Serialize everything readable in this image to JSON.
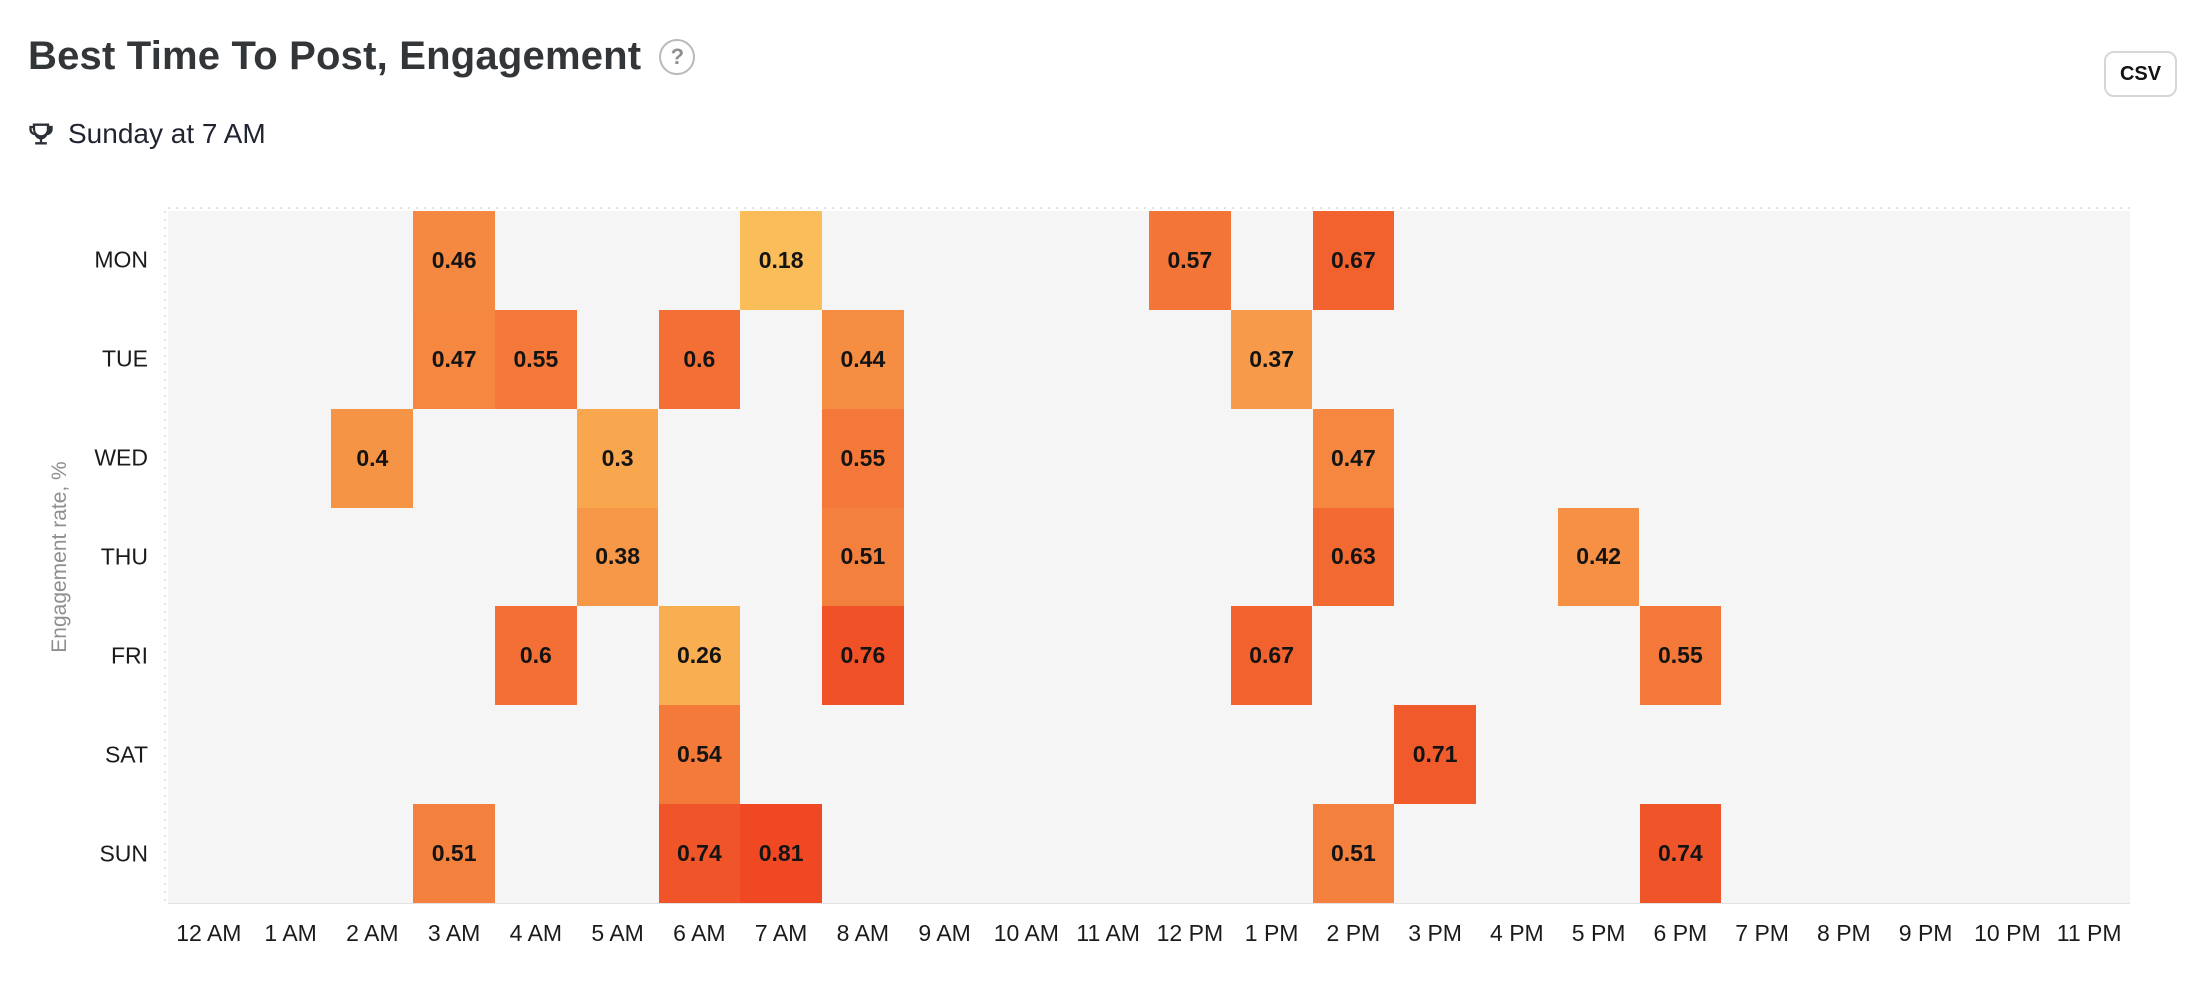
{
  "header": {
    "title": "Best Time To Post, Engagement",
    "help_glyph": "?",
    "csv_button": "CSV"
  },
  "best_time": {
    "trophy_icon": "trophy",
    "label": "Sunday at 7 AM"
  },
  "chart_data": {
    "type": "heatmap",
    "ylabel": "Engagement rate, %",
    "rows": [
      "MON",
      "TUE",
      "WED",
      "THU",
      "FRI",
      "SAT",
      "SUN"
    ],
    "columns": [
      "12 AM",
      "1 AM",
      "2 AM",
      "3 AM",
      "4 AM",
      "5 AM",
      "6 AM",
      "7 AM",
      "8 AM",
      "9 AM",
      "10 AM",
      "11 AM",
      "12 PM",
      "1 PM",
      "2 PM",
      "3 PM",
      "4 PM",
      "5 PM",
      "6 PM",
      "7 PM",
      "8 PM",
      "9 PM",
      "10 PM",
      "11 PM"
    ],
    "cells": [
      {
        "day": "MON",
        "hour": "3 AM",
        "value": 0.46
      },
      {
        "day": "MON",
        "hour": "7 AM",
        "value": 0.18
      },
      {
        "day": "MON",
        "hour": "12 PM",
        "value": 0.57
      },
      {
        "day": "MON",
        "hour": "2 PM",
        "value": 0.67
      },
      {
        "day": "TUE",
        "hour": "3 AM",
        "value": 0.47
      },
      {
        "day": "TUE",
        "hour": "4 AM",
        "value": 0.55
      },
      {
        "day": "TUE",
        "hour": "6 AM",
        "value": 0.6
      },
      {
        "day": "TUE",
        "hour": "8 AM",
        "value": 0.44
      },
      {
        "day": "TUE",
        "hour": "1 PM",
        "value": 0.37
      },
      {
        "day": "WED",
        "hour": "2 AM",
        "value": 0.4
      },
      {
        "day": "WED",
        "hour": "5 AM",
        "value": 0.3
      },
      {
        "day": "WED",
        "hour": "8 AM",
        "value": 0.55
      },
      {
        "day": "WED",
        "hour": "2 PM",
        "value": 0.47
      },
      {
        "day": "THU",
        "hour": "5 AM",
        "value": 0.38
      },
      {
        "day": "THU",
        "hour": "8 AM",
        "value": 0.51
      },
      {
        "day": "THU",
        "hour": "2 PM",
        "value": 0.63
      },
      {
        "day": "THU",
        "hour": "5 PM",
        "value": 0.42
      },
      {
        "day": "FRI",
        "hour": "4 AM",
        "value": 0.6
      },
      {
        "day": "FRI",
        "hour": "6 AM",
        "value": 0.26
      },
      {
        "day": "FRI",
        "hour": "8 AM",
        "value": 0.76
      },
      {
        "day": "FRI",
        "hour": "1 PM",
        "value": 0.67
      },
      {
        "day": "FRI",
        "hour": "6 PM",
        "value": 0.55
      },
      {
        "day": "SAT",
        "hour": "6 AM",
        "value": 0.54
      },
      {
        "day": "SAT",
        "hour": "3 PM",
        "value": 0.71
      },
      {
        "day": "SUN",
        "hour": "3 AM",
        "value": 0.51
      },
      {
        "day": "SUN",
        "hour": "6 AM",
        "value": 0.74
      },
      {
        "day": "SUN",
        "hour": "7 AM",
        "value": 0.81
      },
      {
        "day": "SUN",
        "hour": "2 PM",
        "value": 0.51
      },
      {
        "day": "SUN",
        "hour": "6 PM",
        "value": 0.74
      }
    ],
    "value_range": [
      0.18,
      0.81
    ],
    "colors": {
      "ramp_min": "#FABD59",
      "ramp_max": "#EF4823",
      "plot_background": "#F5F5F5",
      "grid_line": "#E2E2E2",
      "cell_label": "#141414"
    },
    "legend_position": "none",
    "grid": "dotted-top-left"
  }
}
